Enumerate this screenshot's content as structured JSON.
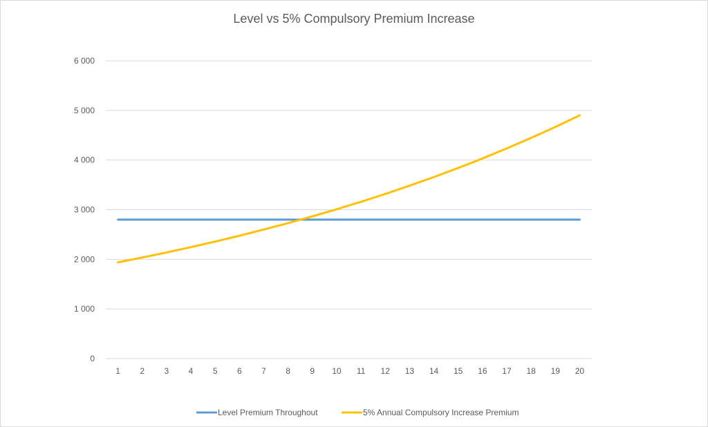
{
  "chart_data": {
    "type": "line",
    "title": "Level vs 5% Compulsory Premium Increase",
    "xlabel": "",
    "ylabel": "",
    "x": [
      1,
      2,
      3,
      4,
      5,
      6,
      7,
      8,
      9,
      10,
      11,
      12,
      13,
      14,
      15,
      16,
      17,
      18,
      19,
      20
    ],
    "x_tick_labels": [
      "1",
      "2",
      "3",
      "4",
      "5",
      "6",
      "7",
      "8",
      "9",
      "10",
      "11",
      "12",
      "13",
      "14",
      "15",
      "16",
      "17",
      "18",
      "19",
      "20"
    ],
    "y_tick_labels": [
      "0",
      "1 000",
      "2 000",
      "3 000",
      "4 000",
      "5 000",
      "6 000"
    ],
    "ylim": [
      0,
      6000
    ],
    "grid": true,
    "legend_position": "bottom",
    "series": [
      {
        "name": "Level Premium Throughout",
        "color": "#5b9bd5",
        "values": [
          2800,
          2800,
          2800,
          2800,
          2800,
          2800,
          2800,
          2800,
          2800,
          2800,
          2800,
          2800,
          2800,
          2800,
          2800,
          2800,
          2800,
          2800,
          2800,
          2800
        ]
      },
      {
        "name": "5% Annual Compulsory Increase Premium",
        "color": "#ffc000",
        "values": [
          1940,
          2037,
          2139,
          2246,
          2358,
          2476,
          2600,
          2730,
          2866,
          3010,
          3160,
          3318,
          3484,
          3658,
          3841,
          4033,
          4235,
          4447,
          4669,
          4902
        ]
      }
    ]
  },
  "colors": {
    "gridline": "#d9d9d9",
    "text": "#595959",
    "border": "#d9d9d9"
  }
}
